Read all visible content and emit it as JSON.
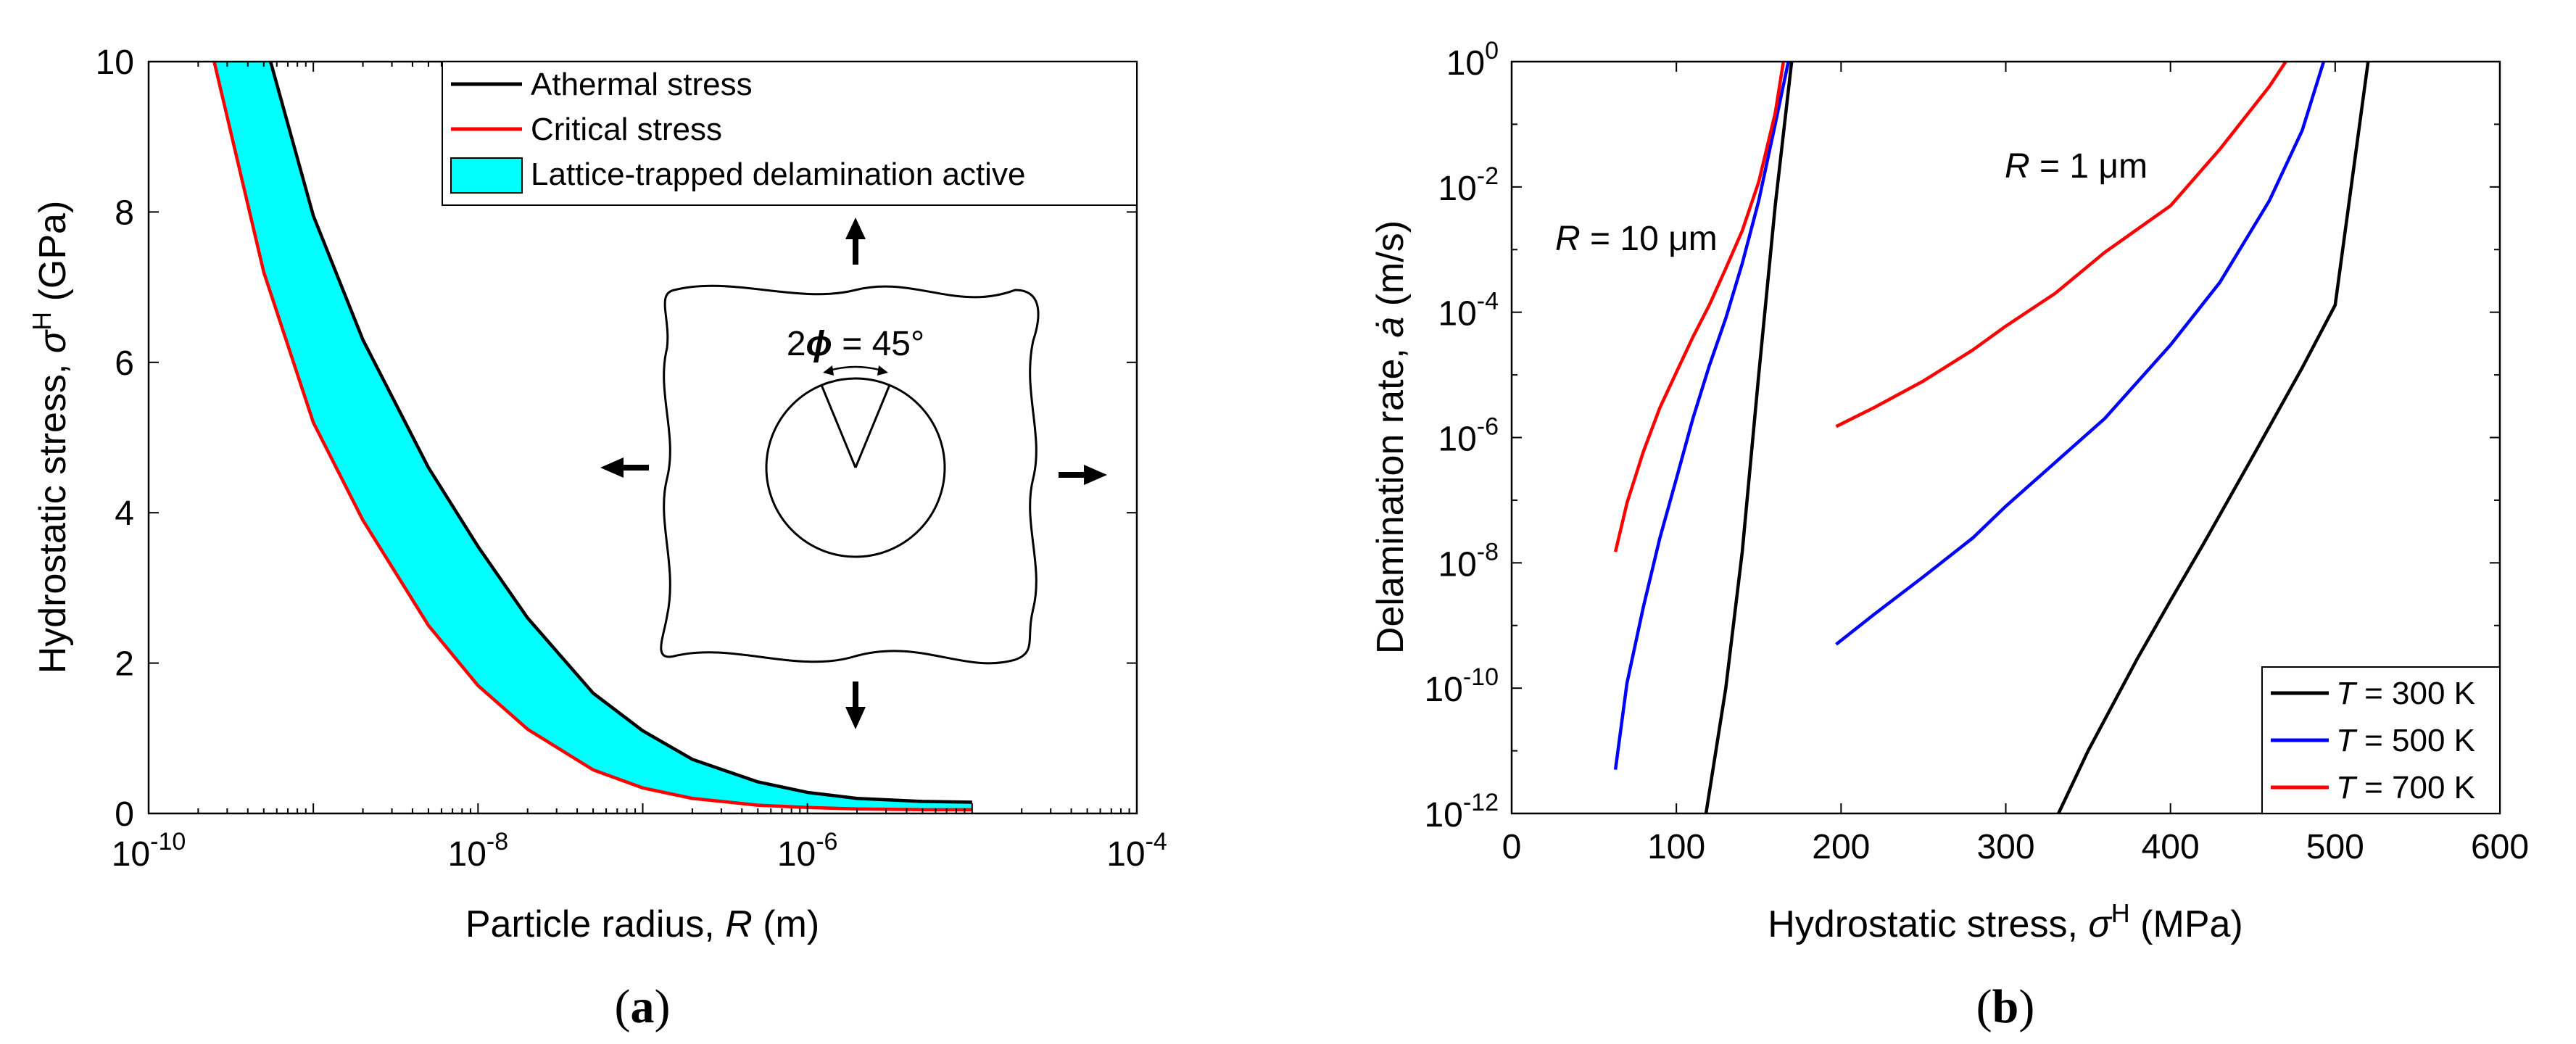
{
  "chart_data": [
    {
      "id": "a",
      "type": "area",
      "panel_label_open": "(",
      "panel_label_letter": "a",
      "panel_label_close": ")",
      "xlabel": "Particle radius, ",
      "xlabel_var": "R",
      "xlabel_unit": " (m)",
      "ylabel": "Hydrostatic stress, ",
      "ylabel_var": "σ",
      "ylabel_sup": "H",
      "ylabel_unit": " (GPa)",
      "xscale": "log",
      "xlim": [
        1e-10,
        0.0001
      ],
      "ylim": [
        0,
        10
      ],
      "xticks": [
        {
          "value": 1e-10,
          "base": "10",
          "exp": "-10"
        },
        {
          "value": 1e-08,
          "base": "10",
          "exp": "-8"
        },
        {
          "value": 1e-06,
          "base": "10",
          "exp": "-6"
        },
        {
          "value": 0.0001,
          "base": "10",
          "exp": "-4"
        }
      ],
      "yticks": [
        {
          "value": 0,
          "label": "0"
        },
        {
          "value": 2,
          "label": "2"
        },
        {
          "value": 4,
          "label": "4"
        },
        {
          "value": 6,
          "label": "6"
        },
        {
          "value": 8,
          "label": "8"
        },
        {
          "value": 10,
          "label": "10"
        }
      ],
      "series": [
        {
          "name": "Athermal stress",
          "color": "#000000",
          "x": [
            5.5e-10,
            1e-09,
            2e-09,
            5e-09,
            1e-08,
            2e-08,
            5e-08,
            1e-07,
            2e-07,
            5e-07,
            1e-06,
            2e-06,
            5e-06,
            1e-05
          ],
          "y": [
            10.0,
            7.95,
            6.3,
            4.6,
            3.55,
            2.6,
            1.6,
            1.1,
            0.72,
            0.42,
            0.28,
            0.2,
            0.16,
            0.15
          ]
        },
        {
          "name": "Critical stress",
          "color": "#ff0000",
          "x": [
            2.5e-10,
            5e-10,
            1e-09,
            2e-09,
            5e-09,
            1e-08,
            2e-08,
            5e-08,
            1e-07,
            2e-07,
            5e-07,
            1e-06,
            2e-06,
            5e-06,
            1e-05
          ],
          "y": [
            10.0,
            7.2,
            5.2,
            3.9,
            2.5,
            1.7,
            1.12,
            0.58,
            0.34,
            0.2,
            0.11,
            0.08,
            0.06,
            0.05,
            0.05
          ]
        }
      ],
      "fill": {
        "name": "Lattice-trapped delamination active",
        "color": "#00ffff"
      },
      "legend": [
        "Athermal stress",
        "Critical stress",
        "Lattice-trapped delamination active"
      ],
      "legend_position": "top-right",
      "inset": {
        "angle_label_prefix": "2",
        "angle_label_var": "ϕ",
        "angle_label_suffix": " = 45°"
      }
    },
    {
      "id": "b",
      "type": "line",
      "panel_label_open": "(",
      "panel_label_letter": "b",
      "panel_label_close": ")",
      "xlabel": "Hydrostatic stress, ",
      "xlabel_var": "σ",
      "xlabel_sup": "H",
      "xlabel_unit": " (MPa)",
      "ylabel": "Delamination rate, ",
      "ylabel_var": "ȧ",
      "ylabel_unit": " (m/s)",
      "yscale": "log",
      "xlim": [
        0,
        600
      ],
      "ylim": [
        1e-12,
        1
      ],
      "xticks": [
        {
          "value": 0,
          "label": "0"
        },
        {
          "value": 100,
          "label": "100"
        },
        {
          "value": 200,
          "label": "200"
        },
        {
          "value": 300,
          "label": "300"
        },
        {
          "value": 400,
          "label": "400"
        },
        {
          "value": 500,
          "label": "500"
        },
        {
          "value": 600,
          "label": "600"
        }
      ],
      "yticks": [
        {
          "value": 1e-12,
          "base": "10",
          "exp": "-12"
        },
        {
          "value": 1e-10,
          "base": "10",
          "exp": "-10"
        },
        {
          "value": 1e-08,
          "base": "10",
          "exp": "-8"
        },
        {
          "value": 1e-06,
          "base": "10",
          "exp": "-6"
        },
        {
          "value": 0.0001,
          "base": "10",
          "exp": "-4"
        },
        {
          "value": 0.01,
          "base": "10",
          "exp": "-2"
        },
        {
          "value": 1,
          "base": "10",
          "exp": "0"
        }
      ],
      "series": [
        {
          "name": "T = 300 K",
          "label_prefix": "T",
          "label_suffix": " = 300 K",
          "color": "#000000",
          "group": "R = 10 μm",
          "x": [
            118,
            130,
            140,
            150,
            160,
            170
          ],
          "y": [
            1e-12,
            1e-10,
            1.5e-08,
            1e-05,
            0.005,
            1.0
          ]
        },
        {
          "name": "T = 500 K",
          "label_prefix": "T",
          "label_suffix": " = 500 K",
          "color": "#0000ff",
          "group": "R = 10 μm",
          "x": [
            63,
            70,
            80,
            90,
            100,
            110,
            120,
            130,
            140,
            150,
            160,
            168
          ],
          "y": [
            5e-12,
            1.2e-10,
            2e-09,
            2.5e-08,
            2.2e-07,
            2e-06,
            1.4e-05,
            8e-05,
            0.0006,
            0.006,
            0.1,
            1.0
          ]
        },
        {
          "name": "T = 700 K",
          "label_prefix": "T",
          "label_suffix": " = 700 K",
          "color": "#ff0000",
          "group": "R = 10 μm",
          "x": [
            63,
            70,
            80,
            90,
            100,
            110,
            120,
            130,
            140,
            150,
            160,
            165
          ],
          "y": [
            1.5e-08,
            9e-08,
            6e-07,
            3e-06,
            1.1e-05,
            4e-05,
            0.00013,
            0.0005,
            0.002,
            0.012,
            0.15,
            1.0
          ]
        },
        {
          "name": "T = 300 K",
          "color": "#000000",
          "group": "R = 1 μm",
          "x": [
            332,
            350,
            380,
            400,
            420,
            450,
            480,
            500,
            520
          ],
          "y": [
            1e-12,
            1e-11,
            3e-10,
            2.5e-09,
            2e-08,
            5e-07,
            1.3e-05,
            0.00013,
            1.0
          ]
        },
        {
          "name": "T = 500 K",
          "color": "#0000ff",
          "group": "R = 1 μm",
          "x": [
            197,
            220,
            250,
            280,
            300,
            330,
            360,
            400,
            430,
            460,
            480,
            493
          ],
          "y": [
            5e-10,
            1.5e-09,
            6e-09,
            2.5e-08,
            8e-08,
            4e-07,
            2e-06,
            3e-05,
            0.0003,
            0.006,
            0.08,
            1.0
          ]
        },
        {
          "name": "T = 700 K",
          "color": "#ff0000",
          "group": "R = 1 μm",
          "x": [
            197,
            220,
            250,
            280,
            300,
            330,
            360,
            400,
            430,
            460,
            470
          ],
          "y": [
            1.5e-06,
            3e-06,
            8e-06,
            2.5e-05,
            6e-05,
            0.0002,
            0.0009,
            0.005,
            0.04,
            0.4,
            1.0
          ]
        }
      ],
      "legend_position": "bottom-right",
      "annotations": [
        {
          "var": "R",
          "text": " = 10 μm"
        },
        {
          "var": "R",
          "text": " = 1 μm"
        }
      ]
    }
  ]
}
